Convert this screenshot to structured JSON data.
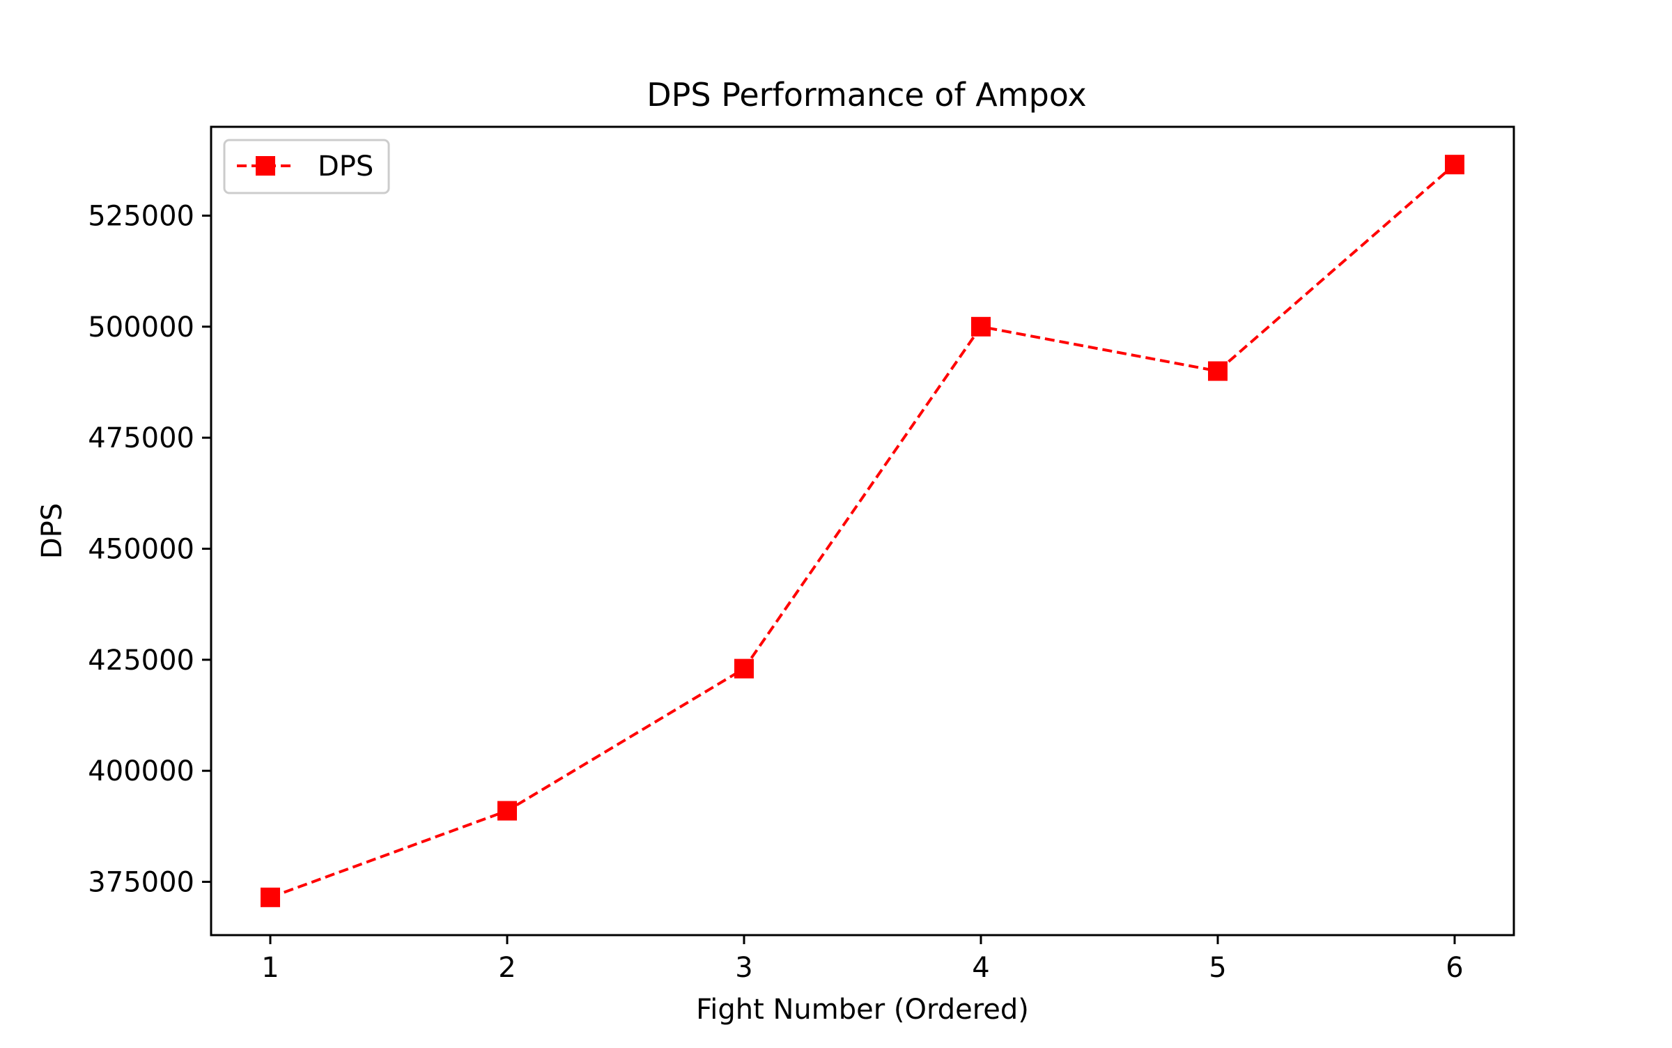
{
  "chart_data": {
    "type": "line",
    "title": "DPS Performance of Ampox",
    "xlabel": "Fight Number (Ordered)",
    "ylabel": "DPS",
    "x": [
      1,
      2,
      3,
      4,
      5,
      6
    ],
    "xlim": [
      0.75,
      6.25
    ],
    "ylim": [
      363000,
      545000
    ],
    "xticks": [
      1,
      2,
      3,
      4,
      5,
      6
    ],
    "yticks": [
      375000,
      400000,
      425000,
      450000,
      475000,
      500000,
      525000
    ],
    "grid": false,
    "legend": {
      "placement": "top-left"
    },
    "series": [
      {
        "name": "DPS",
        "values": [
          371500,
          391000,
          423000,
          500000,
          490000,
          536500
        ],
        "color": "#ff0000",
        "line_style": "dashed",
        "marker": "square"
      }
    ]
  }
}
